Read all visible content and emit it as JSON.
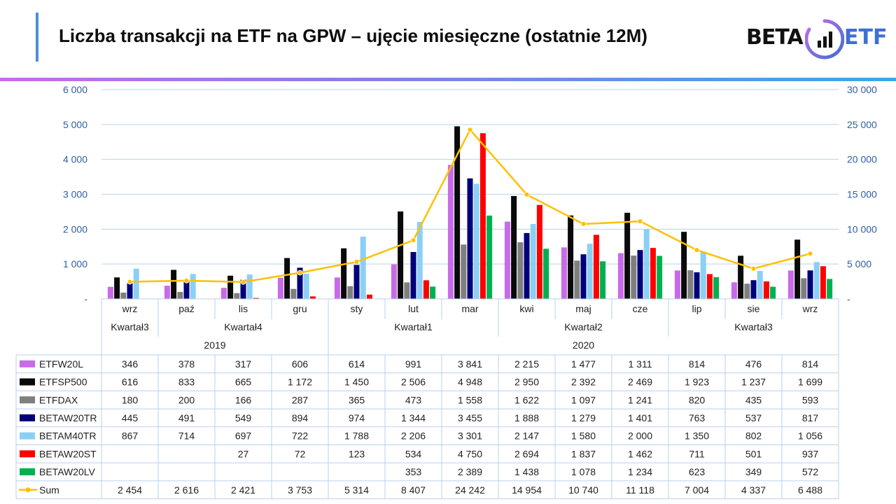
{
  "header": {
    "title": "Liczba transakcji na ETF na GPW – ujęcie miesięczne (ostatnie 12M)",
    "logo_left": "BETA",
    "logo_right": "ETF"
  },
  "chart_data": {
    "type": "bar",
    "categories": [
      "wrz",
      "paź",
      "lis",
      "gru",
      "sty",
      "lut",
      "mar",
      "kwi",
      "maj",
      "cze",
      "lip",
      "sie",
      "wrz"
    ],
    "quarter_groups": [
      {
        "label": "Kwartał3",
        "span": 1
      },
      {
        "label": "Kwartał4",
        "span": 3
      },
      {
        "label": "Kwartał1",
        "span": 3
      },
      {
        "label": "Kwartał2",
        "span": 3
      },
      {
        "label": "Kwartał3",
        "span": 3
      }
    ],
    "year_groups": [
      {
        "label": "2019",
        "span": 4
      },
      {
        "label": "2020",
        "span": 9
      }
    ],
    "y_left": {
      "min": 0,
      "max": 6000,
      "ticks": [
        "-",
        "1 000",
        "2 000",
        "3 000",
        "4 000",
        "5 000",
        "6 000"
      ]
    },
    "y_right": {
      "min": 0,
      "max": 30000,
      "ticks": [
        "-",
        "5 000",
        "10 000",
        "15 000",
        "20 000",
        "25 000",
        "30 000"
      ]
    },
    "series": [
      {
        "name": "ETFW20L",
        "color": "#c86be8",
        "values": [
          346,
          378,
          317,
          606,
          614,
          991,
          3841,
          2215,
          1477,
          1311,
          814,
          476,
          814
        ],
        "labels": [
          "346",
          "378",
          "317",
          "606",
          "614",
          "991",
          "3 841",
          "2 215",
          "1 477",
          "1 311",
          "814",
          "476",
          "814"
        ]
      },
      {
        "name": "ETFSP500",
        "color": "#0a0a0a",
        "values": [
          616,
          833,
          665,
          1172,
          1450,
          2506,
          4948,
          2950,
          2392,
          2469,
          1923,
          1237,
          1699
        ],
        "labels": [
          "616",
          "833",
          "665",
          "1 172",
          "1 450",
          "2 506",
          "4 948",
          "2 950",
          "2 392",
          "2 469",
          "1 923",
          "1 237",
          "1 699"
        ]
      },
      {
        "name": "ETFDAX",
        "color": "#7f7f7f",
        "values": [
          180,
          200,
          166,
          287,
          365,
          473,
          1558,
          1622,
          1097,
          1241,
          820,
          435,
          593
        ],
        "labels": [
          "180",
          "200",
          "166",
          "287",
          "365",
          "473",
          "1 558",
          "1 622",
          "1 097",
          "1 241",
          "820",
          "435",
          "593"
        ]
      },
      {
        "name": "BETAW20TR",
        "color": "#00007a",
        "values": [
          445,
          491,
          549,
          894,
          974,
          1344,
          3455,
          1888,
          1279,
          1401,
          763,
          537,
          817
        ],
        "labels": [
          "445",
          "491",
          "549",
          "894",
          "974",
          "1 344",
          "3 455",
          "1 888",
          "1 279",
          "1 401",
          "763",
          "537",
          "817"
        ]
      },
      {
        "name": "BETAM40TR",
        "color": "#8ccff5",
        "values": [
          867,
          714,
          697,
          722,
          1788,
          2206,
          3301,
          2147,
          1580,
          2000,
          1350,
          802,
          1056
        ],
        "labels": [
          "867",
          "714",
          "697",
          "722",
          "1 788",
          "2 206",
          "3 301",
          "2 147",
          "1 580",
          "2 000",
          "1 350",
          "802",
          "1 056"
        ]
      },
      {
        "name": "BETAW20ST",
        "color": "#ff0000",
        "values": [
          null,
          null,
          27,
          72,
          123,
          534,
          4750,
          2694,
          1837,
          1462,
          711,
          501,
          937
        ],
        "labels": [
          "",
          "",
          "27",
          "72",
          "123",
          "534",
          "4 750",
          "2 694",
          "1 837",
          "1 462",
          "711",
          "501",
          "937"
        ]
      },
      {
        "name": "BETAW20LV",
        "color": "#00b050",
        "values": [
          null,
          null,
          null,
          null,
          null,
          353,
          2389,
          1438,
          1078,
          1234,
          623,
          349,
          572
        ],
        "labels": [
          "",
          "",
          "",
          "",
          "",
          "353",
          "2 389",
          "1 438",
          "1 078",
          "1 234",
          "623",
          "349",
          "572"
        ]
      }
    ],
    "line_series": {
      "name": "Sum",
      "color": "#ffc000",
      "axis": "right",
      "values": [
        2454,
        2616,
        2421,
        3753,
        5314,
        8407,
        24242,
        14954,
        10740,
        11118,
        7004,
        4337,
        6488
      ],
      "labels": [
        "2 454",
        "2 616",
        "2 421",
        "3 753",
        "5 314",
        "8 407",
        "24 242",
        "14 954",
        "10 740",
        "11 118",
        "7 004",
        "4 337",
        "6 488"
      ]
    },
    "grid": true
  }
}
